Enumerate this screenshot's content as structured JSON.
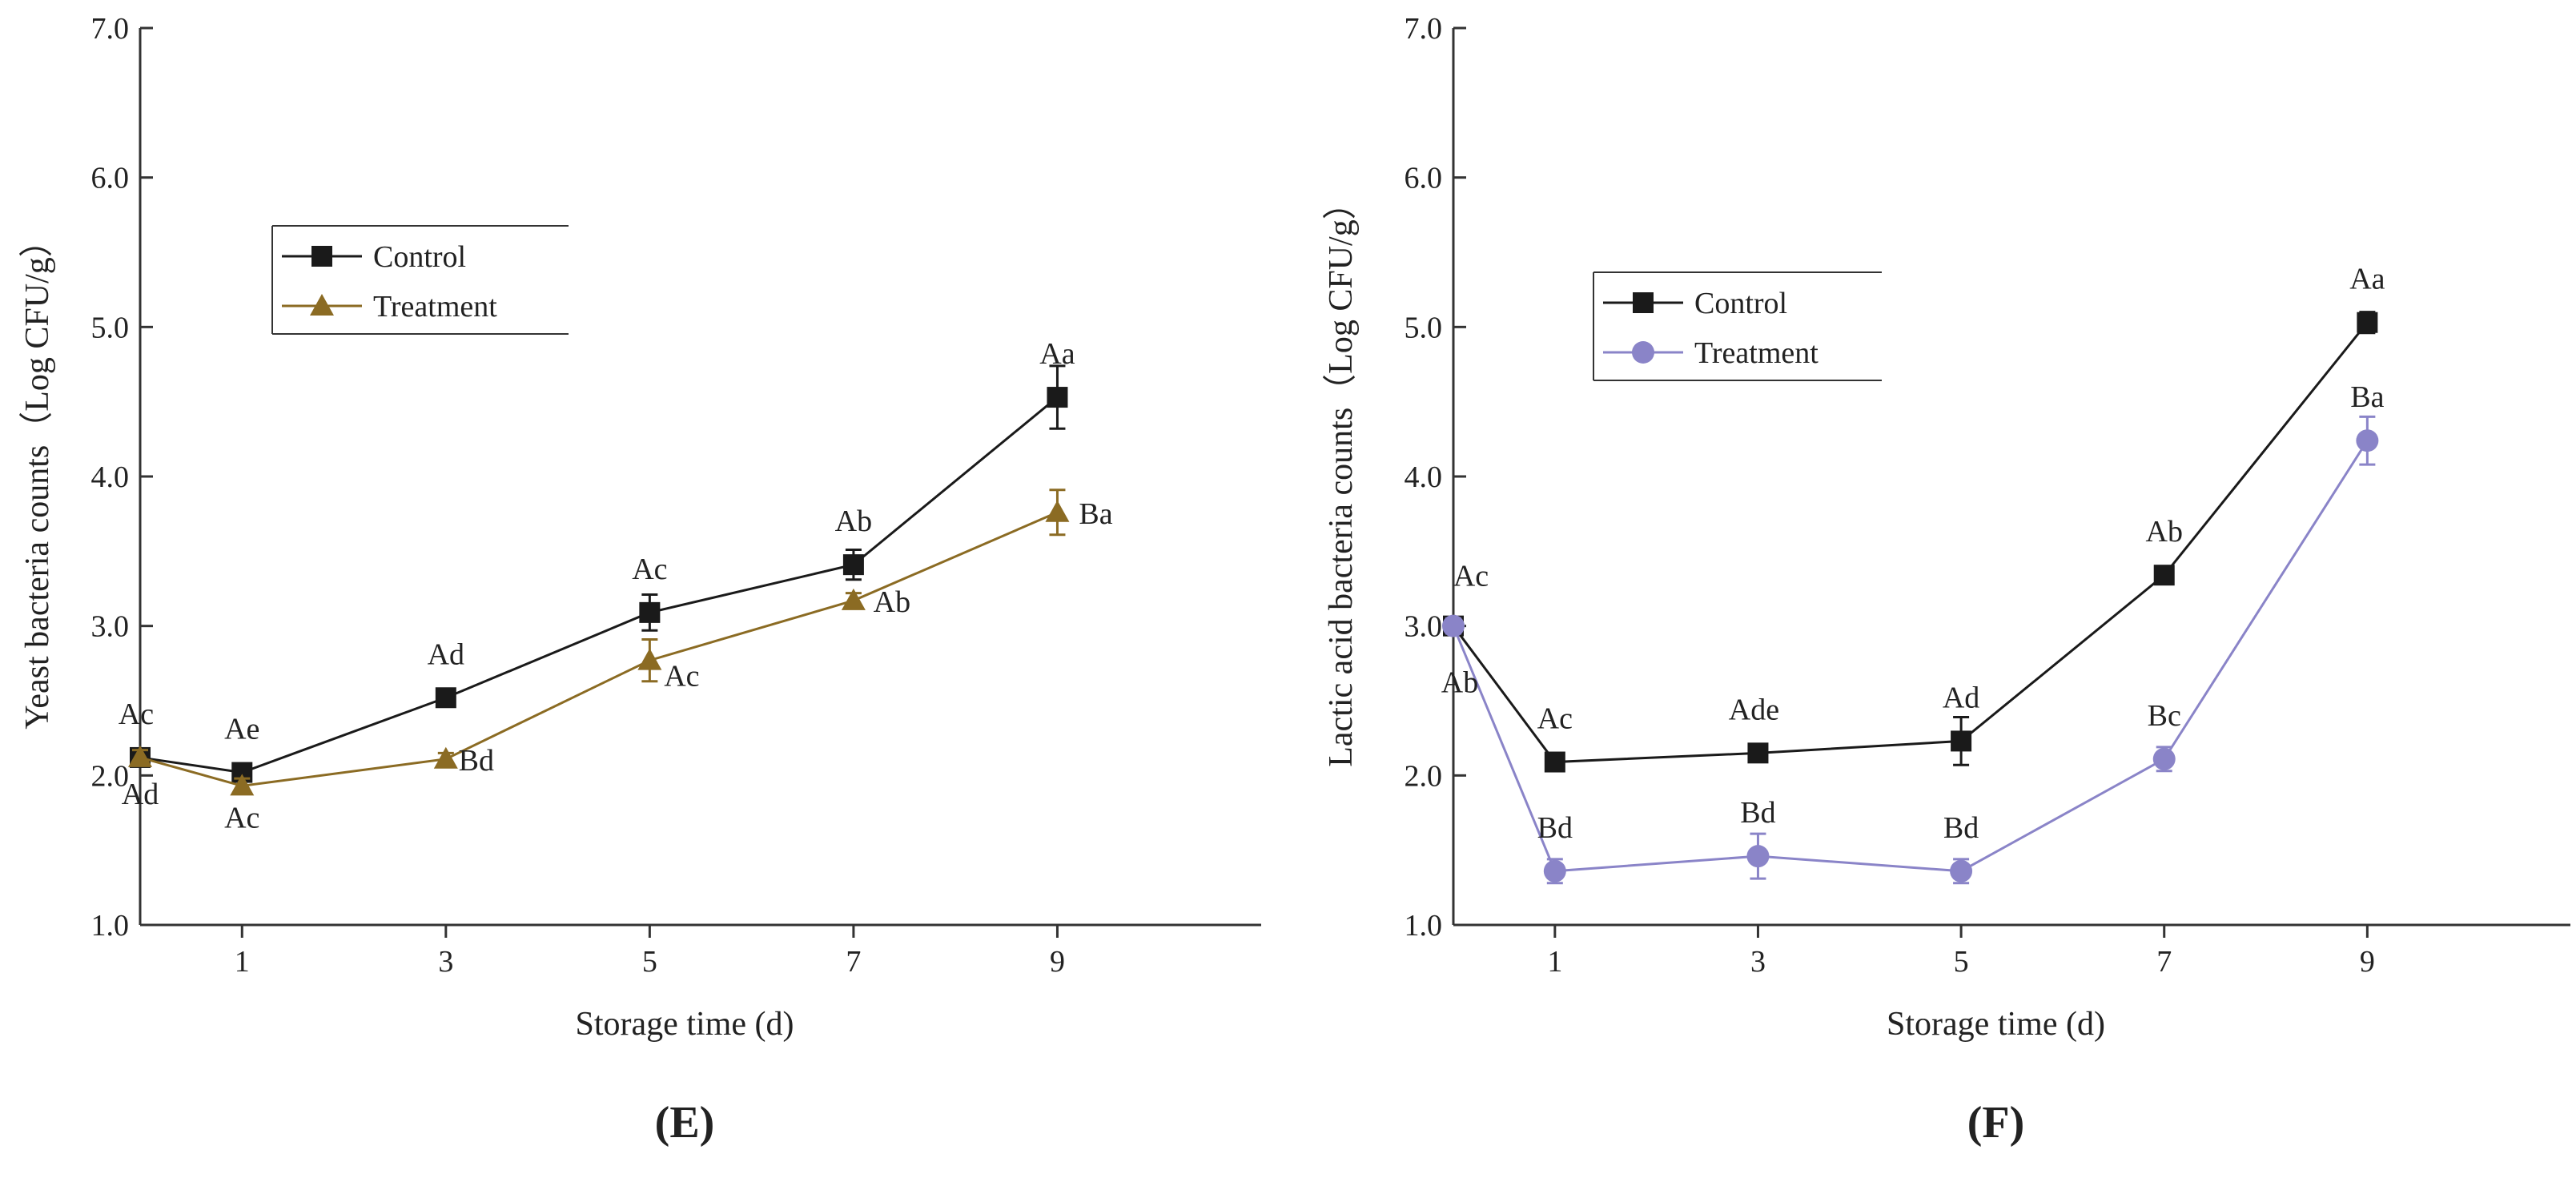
{
  "chart_data": [
    {
      "type": "line",
      "panel_label": "(E)",
      "xlabel": "Storage time (d)",
      "ylabel": "Yeast bacteria counts（Log CFU/g）",
      "x": [
        0,
        1,
        3,
        5,
        7,
        9
      ],
      "x_ticks": [
        1,
        3,
        5,
        7,
        9
      ],
      "x_tick_labels": [
        "1",
        "3",
        "5",
        "7",
        "9"
      ],
      "xlim": [
        0,
        11
      ],
      "ylim": [
        1.0,
        7.0
      ],
      "y_ticks": [
        "1.0",
        "2.0",
        "3.0",
        "4.0",
        "5.0",
        "6.0",
        "7.0"
      ],
      "legend_position": "upper-left",
      "series": [
        {
          "name": "Control",
          "color": "#1a1a1a",
          "marker": "square",
          "values": [
            2.12,
            2.02,
            2.52,
            3.09,
            3.41,
            4.53
          ],
          "errors": [
            0.05,
            0.05,
            0.06,
            0.12,
            0.1,
            0.21
          ],
          "labels": [
            "Ac",
            "Ae",
            "Ad",
            "Ac",
            "Ab",
            "Aa"
          ]
        },
        {
          "name": "Treatment",
          "color": "#8b6b23",
          "marker": "triangle",
          "values": [
            2.12,
            1.93,
            2.11,
            2.77,
            3.17,
            3.76
          ],
          "errors": [
            0.05,
            0.05,
            0.04,
            0.14,
            0.05,
            0.15
          ],
          "labels": [
            "Ad",
            "Ac",
            "Bd",
            "Ac",
            "Ab",
            "Ba"
          ]
        }
      ]
    },
    {
      "type": "line",
      "panel_label": "(F)",
      "xlabel": "Storage time (d)",
      "ylabel": "Lactic acid bacteria counts（Log CFU/g）",
      "x": [
        0,
        1,
        3,
        5,
        7,
        9
      ],
      "x_ticks": [
        1,
        3,
        5,
        7,
        9
      ],
      "x_tick_labels": [
        "1",
        "3",
        "5",
        "7",
        "9"
      ],
      "xlim": [
        0,
        11
      ],
      "ylim": [
        1.0,
        7.0
      ],
      "y_ticks": [
        "1.0",
        "2.0",
        "3.0",
        "4.0",
        "5.0",
        "6.0",
        "7.0"
      ],
      "legend_position": "upper-left",
      "series": [
        {
          "name": "Control",
          "color": "#1a1a1a",
          "marker": "square",
          "values": [
            3.0,
            2.09,
            2.15,
            2.23,
            3.34,
            5.03
          ],
          "errors": [
            0.05,
            0.04,
            0.05,
            0.16,
            0.04,
            0.07
          ],
          "labels": [
            "Ac",
            "Ac",
            "Ade",
            "Ad",
            "Ab",
            "Aa"
          ]
        },
        {
          "name": "Treatment",
          "color": "#8a84c8",
          "marker": "circle",
          "values": [
            3.0,
            1.36,
            1.46,
            1.36,
            2.11,
            4.24
          ],
          "errors": [
            0.05,
            0.08,
            0.15,
            0.08,
            0.08,
            0.16
          ],
          "labels": [
            "Ab",
            "Bd",
            "Bd",
            "Bd",
            "Bc",
            "Ba"
          ]
        }
      ]
    }
  ]
}
